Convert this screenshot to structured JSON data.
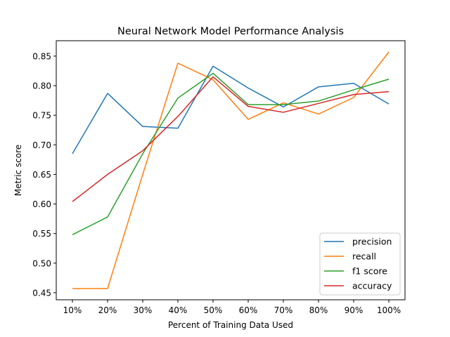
{
  "chart_data": {
    "type": "line",
    "title": "Neural Network Model Performance Analysis",
    "xlabel": "Percent of Training Data Used",
    "ylabel": "Metric score",
    "categories": [
      "10%",
      "20%",
      "30%",
      "40%",
      "50%",
      "60%",
      "70%",
      "80%",
      "90%",
      "100%"
    ],
    "ylim": [
      0.438,
      0.876
    ],
    "yticks": [
      0.45,
      0.5,
      0.55,
      0.6,
      0.65,
      0.7,
      0.75,
      0.8,
      0.85
    ],
    "ytick_labels": [
      "0.45",
      "0.50",
      "0.55",
      "0.60",
      "0.65",
      "0.70",
      "0.75",
      "0.80",
      "0.85"
    ],
    "grid": false,
    "legend_position": "lower-right",
    "series": [
      {
        "name": "precision",
        "color": "#1f77b4",
        "values": [
          0.685,
          0.787,
          0.731,
          0.728,
          0.833,
          0.796,
          0.764,
          0.798,
          0.804,
          0.769
        ]
      },
      {
        "name": "recall",
        "color": "#ff7f0e",
        "values": [
          0.457,
          0.457,
          0.65,
          0.838,
          0.81,
          0.743,
          0.771,
          0.752,
          0.78,
          0.857
        ]
      },
      {
        "name": "f1 score",
        "color": "#2ca02c",
        "values": [
          0.548,
          0.578,
          0.685,
          0.779,
          0.821,
          0.768,
          0.768,
          0.774,
          0.793,
          0.811
        ]
      },
      {
        "name": "accuracy",
        "color": "#d62728",
        "values": [
          0.604,
          0.65,
          0.69,
          0.748,
          0.815,
          0.765,
          0.755,
          0.77,
          0.785,
          0.79
        ]
      }
    ]
  }
}
